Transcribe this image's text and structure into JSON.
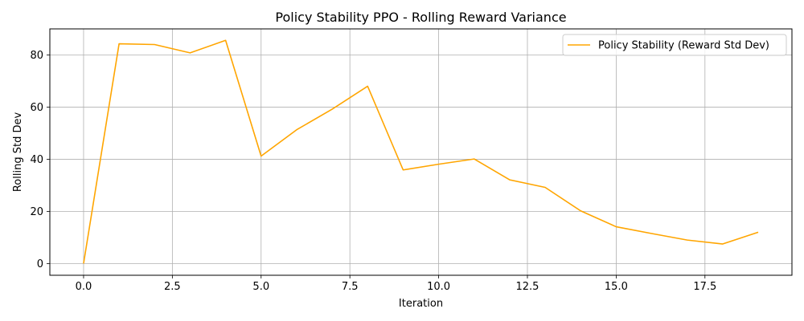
{
  "chart_data": {
    "type": "line",
    "title": "Policy Stability PPO - Rolling Reward Variance",
    "xlabel": "Iteration",
    "ylabel": "Rolling Std Dev",
    "xlim": [
      -0.95,
      19.95
    ],
    "ylim": [
      -4.5,
      90
    ],
    "xticks": [
      0,
      2.5,
      5,
      7.5,
      10,
      12.5,
      15,
      17.5
    ],
    "xtick_labels": [
      "0.0",
      "2.5",
      "5.0",
      "7.5",
      "10.0",
      "12.5",
      "15.0",
      "17.5"
    ],
    "yticks": [
      0,
      20,
      40,
      60,
      80
    ],
    "ytick_labels": [
      "0",
      "20",
      "40",
      "60",
      "80"
    ],
    "grid": true,
    "legend_position": "top-right",
    "series": [
      {
        "name": "Policy Stability (Reward Std Dev)",
        "color": "#ffa500",
        "x": [
          0,
          1,
          2,
          3,
          4,
          5,
          6,
          7,
          8,
          9,
          10,
          11,
          12,
          13,
          14,
          15,
          16,
          17,
          18,
          19
        ],
        "values": [
          0,
          84.3,
          84.0,
          80.8,
          85.6,
          41.2,
          51.3,
          59.2,
          68.0,
          35.9,
          38.1,
          40.1,
          32.1,
          29.2,
          20.2,
          14.1,
          11.5,
          9.0,
          7.5,
          12.0
        ]
      }
    ]
  }
}
